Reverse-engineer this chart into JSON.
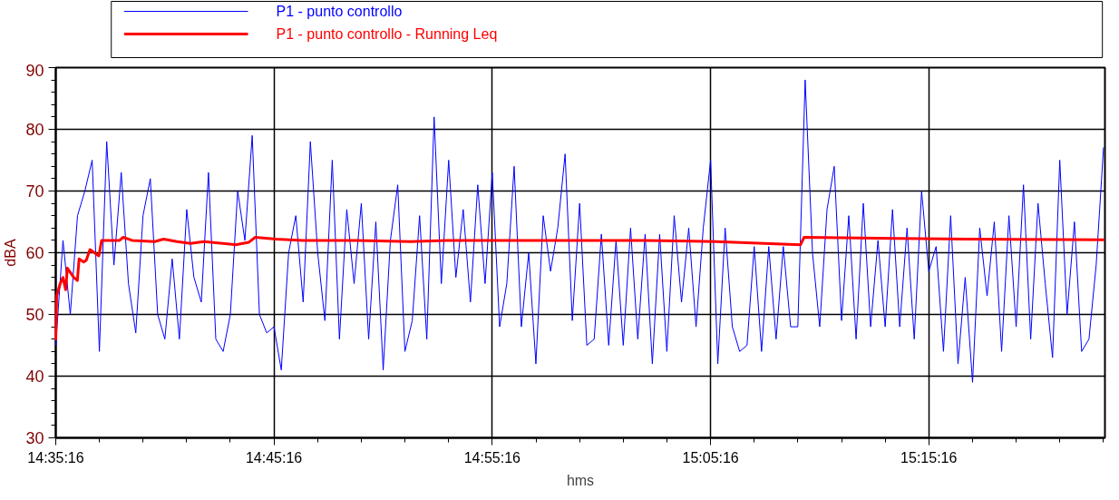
{
  "chart_data": {
    "type": "line",
    "xlabel": "hms",
    "ylabel": "dBA",
    "xlim": [
      14.5878,
      15.3889
    ],
    "ylim": [
      30,
      90
    ],
    "xticks": [
      {
        "value": 14.5878,
        "label": "14:35:16"
      },
      {
        "value": 14.7544,
        "label": "14:45:16"
      },
      {
        "value": 14.9211,
        "label": "14:55:16"
      },
      {
        "value": 15.0878,
        "label": "15:05:16"
      },
      {
        "value": 15.2544,
        "label": "15:15:16"
      }
    ],
    "yticks": [
      30,
      40,
      50,
      60,
      70,
      80,
      90
    ],
    "grid": true,
    "legend": "top",
    "series": [
      {
        "name": "P1 - punto controllo",
        "color": "#0000ff",
        "x": [
          14.5878,
          14.5933,
          14.5989,
          14.6044,
          14.61,
          14.6156,
          14.6211,
          14.6267,
          14.6322,
          14.6378,
          14.6433,
          14.6489,
          14.6544,
          14.66,
          14.6656,
          14.6711,
          14.6767,
          14.6822,
          14.6878,
          14.6933,
          14.6989,
          14.7044,
          14.71,
          14.7156,
          14.7211,
          14.7267,
          14.7322,
          14.7378,
          14.7433,
          14.7489,
          14.7544,
          14.76,
          14.7656,
          14.7711,
          14.7767,
          14.7822,
          14.7878,
          14.7933,
          14.7989,
          14.8044,
          14.81,
          14.8156,
          14.8211,
          14.8267,
          14.8322,
          14.8378,
          14.8433,
          14.8489,
          14.8544,
          14.86,
          14.8656,
          14.8711,
          14.8767,
          14.8822,
          14.8878,
          14.8933,
          14.8989,
          14.9044,
          14.91,
          14.9156,
          14.9211,
          14.9267,
          14.9322,
          14.9378,
          14.9433,
          14.9489,
          14.9544,
          14.96,
          14.9656,
          14.9711,
          14.9767,
          14.9822,
          14.9878,
          14.9933,
          14.9989,
          15.0044,
          15.01,
          15.0156,
          15.0211,
          15.0267,
          15.0322,
          15.0378,
          15.0433,
          15.0489,
          15.0544,
          15.06,
          15.0656,
          15.0711,
          15.0767,
          15.0822,
          15.0878,
          15.0933,
          15.0989,
          15.1044,
          15.11,
          15.1156,
          15.1211,
          15.1267,
          15.1322,
          15.1378,
          15.1433,
          15.1489,
          15.1544,
          15.16,
          15.1656,
          15.1711,
          15.1767,
          15.1822,
          15.1878,
          15.1933,
          15.1989,
          15.2044,
          15.21,
          15.2156,
          15.2211,
          15.2267,
          15.2322,
          15.2378,
          15.2433,
          15.2489,
          15.2544,
          15.26,
          15.2656,
          15.2711,
          15.2767,
          15.2822,
          15.2878,
          15.2933,
          15.2989,
          15.3044,
          15.31,
          15.3156,
          15.3211,
          15.3267,
          15.3322,
          15.3378,
          15.3433,
          15.3489,
          15.3544,
          15.36,
          15.3656,
          15.3711,
          15.3767,
          15.3822,
          15.3878
        ],
        "values": [
          45,
          62,
          50,
          66,
          70,
          75,
          44,
          78,
          58,
          73,
          55,
          47,
          66,
          72,
          50,
          46,
          59,
          46,
          67,
          56,
          52,
          73,
          46,
          44,
          50,
          70,
          62,
          79,
          50,
          47,
          48,
          41,
          60,
          66,
          52,
          78,
          60,
          49,
          75,
          46,
          67,
          55,
          68,
          46,
          65,
          41,
          62,
          71,
          44,
          49,
          66,
          46,
          82,
          55,
          75,
          56,
          67,
          52,
          71,
          55,
          73,
          48,
          55,
          74,
          48,
          60,
          42,
          66,
          57,
          64,
          76,
          49,
          68,
          45,
          46,
          63,
          45,
          62,
          45,
          64,
          46,
          63,
          42,
          63,
          44,
          66,
          52,
          64,
          48,
          64,
          75,
          42,
          64,
          48,
          44,
          45,
          61,
          44,
          61,
          46,
          61,
          48,
          48,
          88,
          60,
          48,
          67,
          74,
          49,
          66,
          46,
          68,
          48,
          62,
          48,
          67,
          48,
          64,
          46,
          70,
          57,
          61,
          44,
          66,
          42,
          56,
          39,
          64,
          53,
          65,
          44,
          66,
          48,
          71,
          46,
          68,
          55,
          43,
          75,
          50,
          65,
          44,
          46,
          58,
          77
        ]
      },
      {
        "name": "P1 - punto controllo - Running Leq",
        "color": "#ff0000",
        "x": [
          14.5878,
          14.5885,
          14.5912,
          14.5933,
          14.5953,
          14.5967,
          14.6015,
          14.6043,
          14.6056,
          14.6091,
          14.6111,
          14.6139,
          14.6207,
          14.6228,
          14.6365,
          14.6393,
          14.6461,
          14.6633,
          14.6701,
          14.6804,
          14.6907,
          14.701,
          14.725,
          14.7353,
          14.7401,
          14.7559,
          14.7765,
          14.8176,
          14.8588,
          14.8862,
          14.9274,
          14.9823,
          15.0371,
          15.092,
          15.1565,
          15.1592,
          15.2292,
          15.2841,
          15.3877
        ],
        "values": [
          46,
          53,
          55,
          56,
          54,
          57.5,
          56,
          55.5,
          59,
          58.5,
          58.8,
          60.5,
          59.5,
          62,
          62,
          62.5,
          62,
          61.8,
          62.2,
          61.8,
          61.5,
          61.8,
          61.3,
          61.7,
          62.5,
          62.2,
          62,
          62,
          61.8,
          62,
          62,
          62,
          62,
          61.8,
          61.3,
          62.5,
          62.3,
          62.2,
          62.1
        ]
      }
    ]
  }
}
